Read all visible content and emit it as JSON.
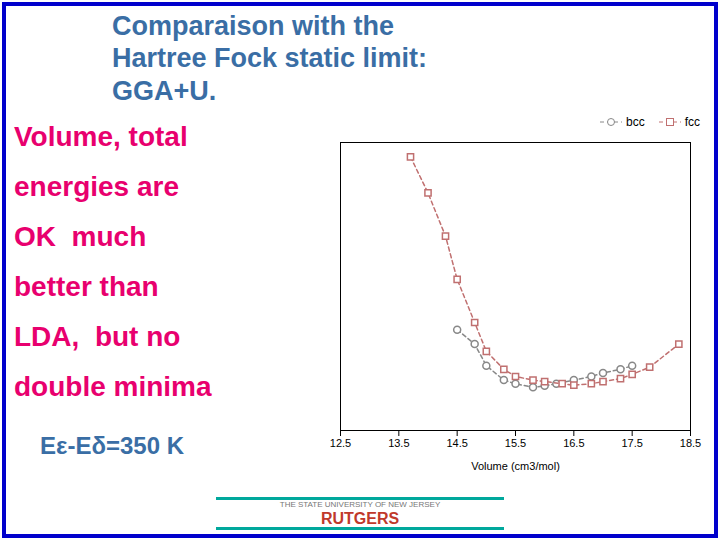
{
  "chart_data": {
    "type": "line",
    "title": "Comparaison with the\nHartree Fock static limit:\nGGA+U.",
    "annotations": [
      "Volume, total\nenergies are\nOK  much\nbetter than\nLDA,  but no\ndouble minima",
      "Eε-Eδ=350 K",
      "THE STATE UNIVERSITY OF NEW JERSEY",
      "RUTGERS"
    ],
    "xlabel": "Volume (cm3/mol)",
    "xlim": [
      12.5,
      18.5
    ],
    "xticks": [
      12.5,
      13.5,
      14.5,
      15.5,
      16.5,
      17.5,
      18.5
    ],
    "ylim": [
      2,
      6
    ],
    "yticks": [],
    "tick_labels": "x",
    "legend": "upper right",
    "series": [
      {
        "name": "bcc",
        "color": "#888888",
        "marker": "circle",
        "line_style": "dashed",
        "x": [
          14.5,
          14.8,
          15.0,
          15.3,
          15.5,
          15.8,
          16.0,
          16.2,
          16.5,
          16.8,
          17.0,
          17.3,
          17.5
        ],
        "values": [
          3.4,
          3.2,
          2.9,
          2.7,
          2.65,
          2.6,
          2.62,
          2.65,
          2.7,
          2.75,
          2.8,
          2.85,
          2.9
        ]
      },
      {
        "name": "fcc",
        "color": "#c07070",
        "marker": "square",
        "line_style": "dashed",
        "x": [
          13.7,
          14.0,
          14.3,
          14.5,
          14.8,
          15.0,
          15.3,
          15.5,
          15.8,
          16.0,
          16.3,
          16.5,
          16.8,
          17.0,
          17.3,
          17.5,
          17.8,
          18.3
        ],
        "values": [
          5.8,
          5.3,
          4.7,
          4.1,
          3.5,
          3.1,
          2.85,
          2.75,
          2.7,
          2.68,
          2.65,
          2.63,
          2.65,
          2.68,
          2.72,
          2.78,
          2.88,
          3.2
        ]
      }
    ]
  }
}
